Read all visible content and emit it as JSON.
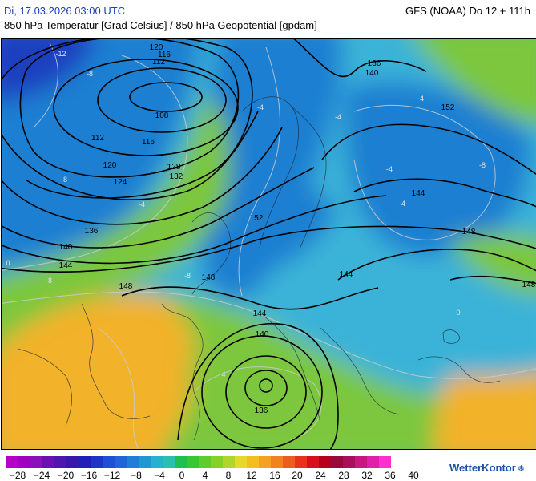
{
  "header": {
    "date": "Di, 17.03.2026 03:00 UTC",
    "model": "GFS (NOAA) Do 12 + 111h",
    "subtitle": "850 hPa Temperatur [Grad Celsius] / 850 hPa Geopotential [gpdam]"
  },
  "map": {
    "geopotential_labels": [
      "120",
      "116",
      "112",
      "108",
      "112",
      "116",
      "120",
      "124",
      "128",
      "132",
      "136",
      "140",
      "144",
      "148",
      "152",
      "136",
      "140",
      "152",
      "144",
      "148",
      "148",
      "144",
      "148",
      "144",
      "140",
      "136"
    ],
    "temperature_labels": [
      "-12",
      "-8",
      "-4",
      "-8",
      "-4",
      "-4",
      "0",
      "-8",
      "4",
      "-4",
      "-4",
      "0",
      "-8",
      "-4",
      "-8"
    ],
    "colors": {
      "warm": "#f2b22c",
      "mild": "#7cc73d",
      "cold": "#1f7fd1",
      "frigid": "#1a3fb8"
    }
  },
  "legend": {
    "ticks": [
      "−28",
      "−24",
      "−20",
      "−16",
      "−12",
      "−8",
      "−4",
      "0",
      "4",
      "8",
      "12",
      "16",
      "20",
      "24",
      "28",
      "32",
      "36",
      "40"
    ],
    "colors": [
      "#b400c8",
      "#a000c0",
      "#8a10b8",
      "#6c10b0",
      "#4e16ac",
      "#3818a8",
      "#2020b8",
      "#1f35c8",
      "#1f4fd4",
      "#1f65d8",
      "#1f7fd8",
      "#2096d4",
      "#27b0d0",
      "#2ac0b0",
      "#20c050",
      "#36c832",
      "#5ccd2c",
      "#86d128",
      "#b0d62a",
      "#e8d82c",
      "#f4be20",
      "#f4a020",
      "#f08220",
      "#ec5e1e",
      "#e8321c",
      "#d8101c",
      "#b8001c",
      "#980a3c",
      "#a8105c",
      "#c81880",
      "#e020a8",
      "#ff30d0"
    ],
    "brand": "WetterKontor"
  }
}
